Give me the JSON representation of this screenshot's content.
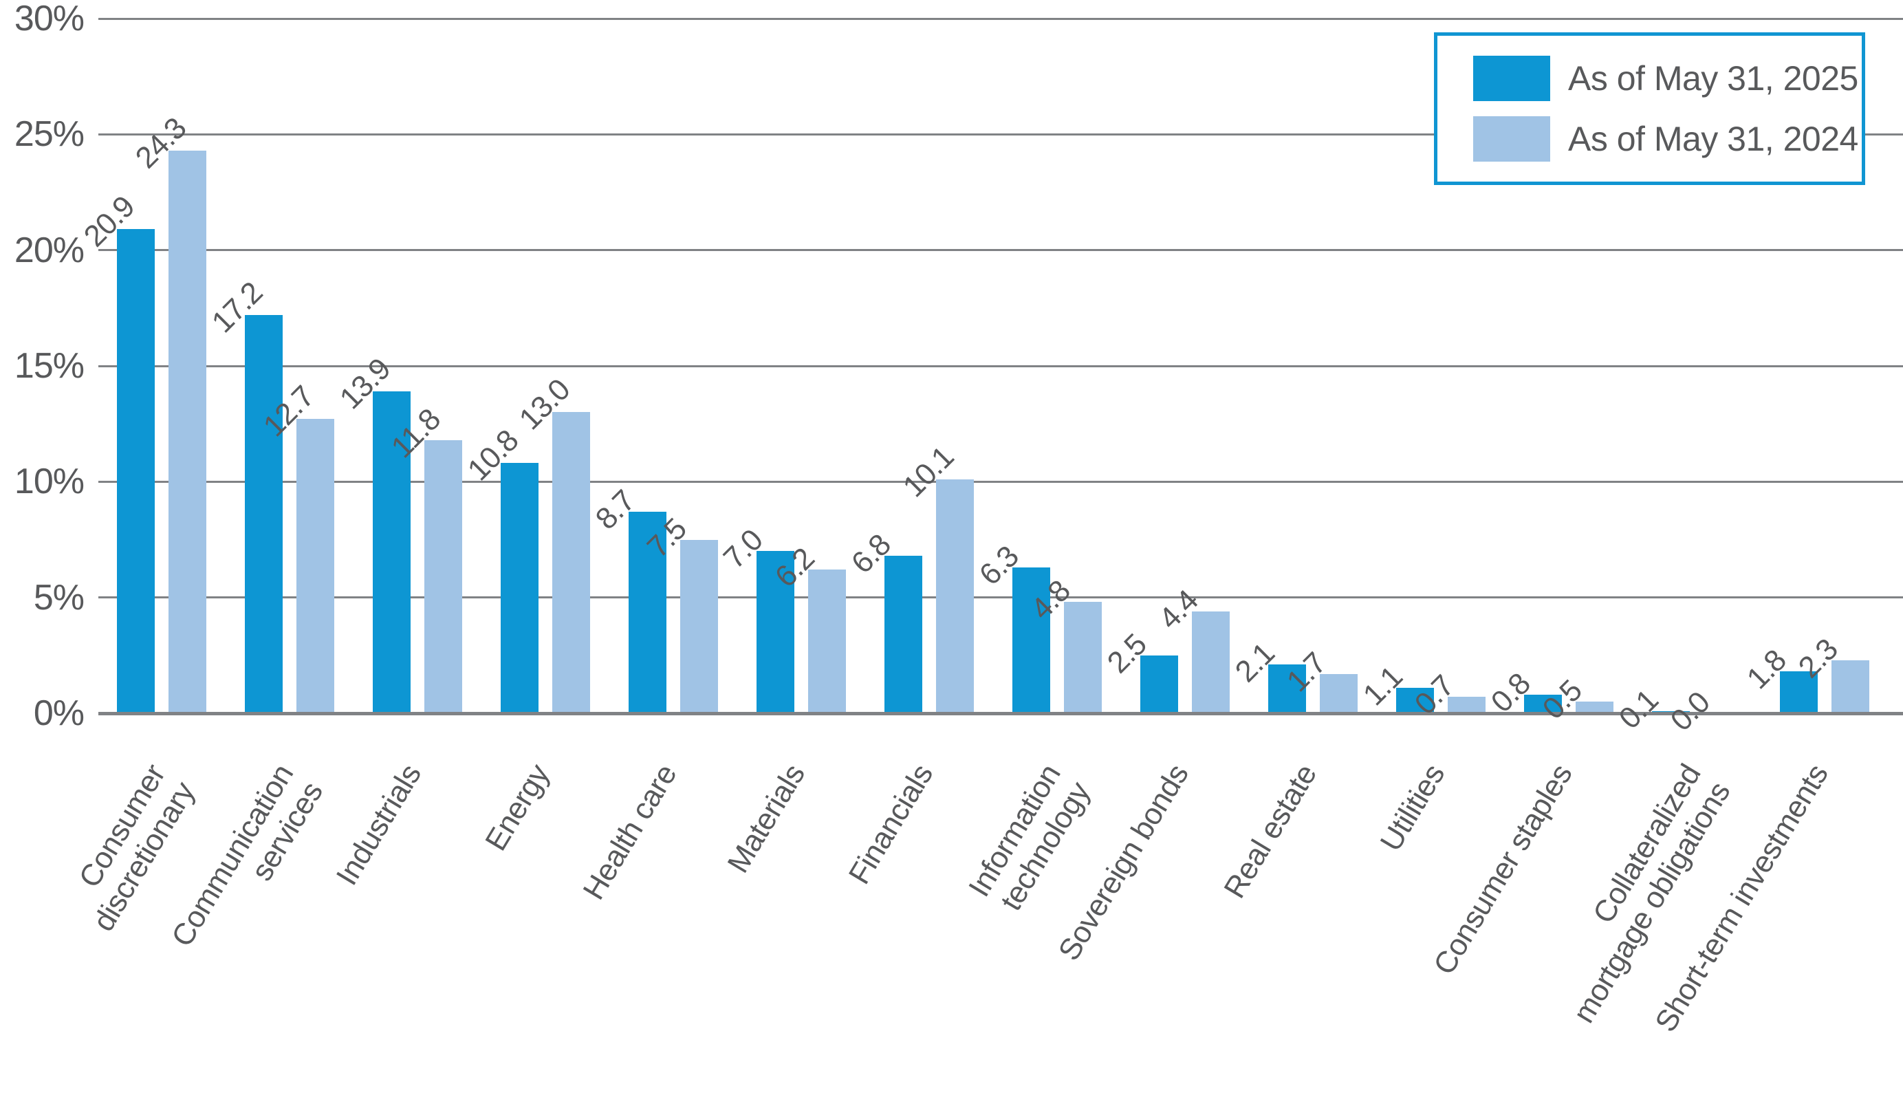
{
  "chart_data": {
    "type": "bar",
    "title": "",
    "categories": [
      "Consumer\ndiscretionary",
      "Communication\nservices",
      "Industrials",
      "Energy",
      "Health care",
      "Materials",
      "Financials",
      "Information\ntechnology",
      "Sovereign bonds",
      "Real estate",
      "Utilities",
      "Consumer staples",
      "Collateralized\nmortgage obligations",
      "Short-term investments"
    ],
    "series": [
      {
        "name": "As of May 31, 2025",
        "color": "#0D96D3",
        "values": [
          20.9,
          17.2,
          13.9,
          10.8,
          8.7,
          7.0,
          6.8,
          6.3,
          2.5,
          2.1,
          1.1,
          0.8,
          0.1,
          1.8
        ]
      },
      {
        "name": "As of May 31, 2024",
        "color": "#A0C3E5",
        "values": [
          24.3,
          12.7,
          11.8,
          13.0,
          7.5,
          6.2,
          10.1,
          4.8,
          4.4,
          1.7,
          0.7,
          0.5,
          0.0,
          2.3
        ]
      }
    ],
    "xlabel": "",
    "ylabel": "",
    "ylim": [
      0,
      30
    ],
    "ytick_step": 5,
    "ytick_labels": [
      "0%",
      "5%",
      "10%",
      "15%",
      "20%",
      "25%",
      "30%"
    ],
    "grid": true,
    "value_labels": true,
    "value_label_format": "one_decimal",
    "legend_position": "top-right"
  },
  "legend": {
    "border_color": "#1095D2",
    "items": [
      {
        "label": "As of May 31, 2025",
        "color": "#0D96D3"
      },
      {
        "label": "As of May 31, 2024",
        "color": "#A0C3E5"
      }
    ]
  },
  "colors": {
    "grid": "#808285",
    "axis_text": "#58595B",
    "background": "#FFFFFF"
  }
}
